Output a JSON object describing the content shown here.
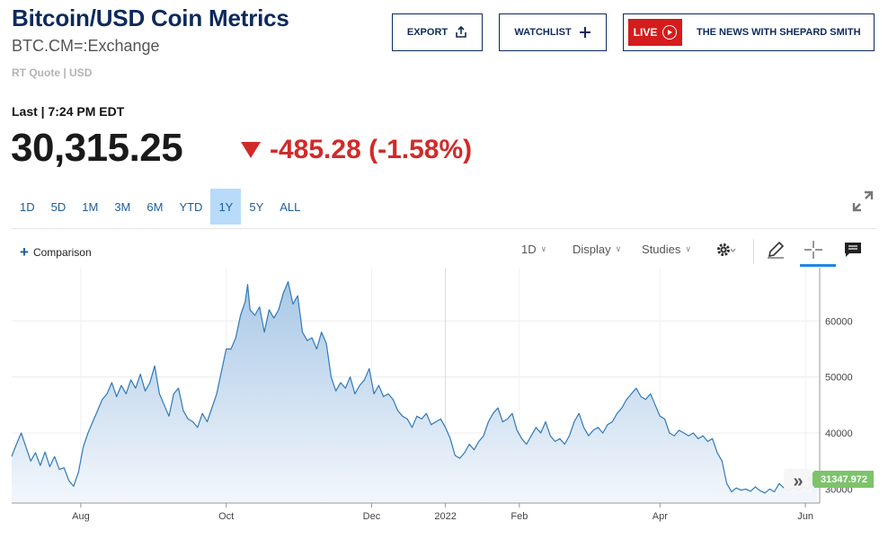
{
  "header": {
    "title": "Bitcoin/USD Coin Metrics",
    "symbol": "BTC.CM=:Exchange",
    "quote_meta": "RT Quote | USD"
  },
  "actions": {
    "export_label": "EXPORT",
    "watchlist_label": "WATCHLIST",
    "live_label": "LIVE",
    "live_show": "THE NEWS WITH SHEPARD SMITH"
  },
  "quote": {
    "last_label": "Last | 7:24 PM EDT",
    "price": "30,315.25",
    "change": "-485.28 (-1.58%)"
  },
  "ranges": [
    "1D",
    "5D",
    "1M",
    "3M",
    "6M",
    "YTD",
    "1Y",
    "5Y",
    "ALL"
  ],
  "active_range": "1Y",
  "toolbar": {
    "comparison_label": "Comparison",
    "interval_label": "1D",
    "display_label": "Display",
    "studies_label": "Studies"
  },
  "colors": {
    "line": "#2f7ab8",
    "area_top": "#a9c8e6",
    "area_bottom": "#f3f7fc",
    "down": "#d12a2a",
    "last_tag": "#7cc36a"
  },
  "chart_data": {
    "type": "area",
    "title": "Bitcoin/USD Coin Metrics",
    "x_ticks": [
      {
        "label": "Aug",
        "day": 29
      },
      {
        "label": "Oct",
        "day": 90
      },
      {
        "label": "Dec",
        "day": 151
      },
      {
        "label": "2022",
        "day": 182
      },
      {
        "label": "Feb",
        "day": 213
      },
      {
        "label": "Apr",
        "day": 272
      },
      {
        "label": "Jun",
        "day": 333
      }
    ],
    "x_domain_days": [
      0,
      339
    ],
    "y_ticks": [
      30000,
      40000,
      50000,
      60000
    ],
    "ylim": [
      27500,
      69500
    ],
    "last_value": "31347.972",
    "points": [
      [
        0,
        35800
      ],
      [
        2,
        38000
      ],
      [
        4,
        40000
      ],
      [
        6,
        37500
      ],
      [
        8,
        35000
      ],
      [
        10,
        36500
      ],
      [
        12,
        34200
      ],
      [
        14,
        36600
      ],
      [
        16,
        34000
      ],
      [
        18,
        35800
      ],
      [
        20,
        33500
      ],
      [
        22,
        33800
      ],
      [
        24,
        31500
      ],
      [
        26,
        30500
      ],
      [
        28,
        33000
      ],
      [
        30,
        37500
      ],
      [
        32,
        40000
      ],
      [
        34,
        42000
      ],
      [
        36,
        44000
      ],
      [
        38,
        46000
      ],
      [
        40,
        47000
      ],
      [
        42,
        49000
      ],
      [
        44,
        46500
      ],
      [
        46,
        48500
      ],
      [
        48,
        47000
      ],
      [
        50,
        49500
      ],
      [
        52,
        48000
      ],
      [
        54,
        50500
      ],
      [
        56,
        47500
      ],
      [
        58,
        49000
      ],
      [
        60,
        52000
      ],
      [
        62,
        47000
      ],
      [
        64,
        45000
      ],
      [
        66,
        43000
      ],
      [
        68,
        47000
      ],
      [
        70,
        48000
      ],
      [
        72,
        44000
      ],
      [
        74,
        42500
      ],
      [
        76,
        42000
      ],
      [
        78,
        41000
      ],
      [
        80,
        43500
      ],
      [
        82,
        42000
      ],
      [
        84,
        44500
      ],
      [
        86,
        47000
      ],
      [
        88,
        51000
      ],
      [
        90,
        55000
      ],
      [
        92,
        55000
      ],
      [
        94,
        57000
      ],
      [
        96,
        61000
      ],
      [
        98,
        63500
      ],
      [
        99,
        66500
      ],
      [
        100,
        62000
      ],
      [
        102,
        61000
      ],
      [
        104,
        62500
      ],
      [
        106,
        58000
      ],
      [
        108,
        62000
      ],
      [
        110,
        60500
      ],
      [
        112,
        62000
      ],
      [
        114,
        65000
      ],
      [
        116,
        67000
      ],
      [
        118,
        63000
      ],
      [
        120,
        64500
      ],
      [
        122,
        58000
      ],
      [
        124,
        56500
      ],
      [
        126,
        57000
      ],
      [
        128,
        55000
      ],
      [
        130,
        58000
      ],
      [
        132,
        56000
      ],
      [
        134,
        50000
      ],
      [
        136,
        47500
      ],
      [
        138,
        49000
      ],
      [
        140,
        48000
      ],
      [
        142,
        50000
      ],
      [
        144,
        47000
      ],
      [
        146,
        48500
      ],
      [
        148,
        49500
      ],
      [
        150,
        51500
      ],
      [
        152,
        47000
      ],
      [
        154,
        48500
      ],
      [
        156,
        46500
      ],
      [
        158,
        47000
      ],
      [
        160,
        46000
      ],
      [
        162,
        44000
      ],
      [
        164,
        43000
      ],
      [
        166,
        42500
      ],
      [
        168,
        41000
      ],
      [
        170,
        43000
      ],
      [
        172,
        42500
      ],
      [
        174,
        43500
      ],
      [
        176,
        41500
      ],
      [
        178,
        42000
      ],
      [
        180,
        42500
      ],
      [
        182,
        41000
      ],
      [
        184,
        39000
      ],
      [
        186,
        36000
      ],
      [
        188,
        35500
      ],
      [
        190,
        36500
      ],
      [
        192,
        38000
      ],
      [
        194,
        37000
      ],
      [
        196,
        38500
      ],
      [
        198,
        39500
      ],
      [
        200,
        42000
      ],
      [
        202,
        43500
      ],
      [
        204,
        44500
      ],
      [
        206,
        42000
      ],
      [
        208,
        42500
      ],
      [
        210,
        43500
      ],
      [
        212,
        40500
      ],
      [
        214,
        39000
      ],
      [
        216,
        38000
      ],
      [
        218,
        39500
      ],
      [
        220,
        41000
      ],
      [
        222,
        40000
      ],
      [
        224,
        42000
      ],
      [
        226,
        39500
      ],
      [
        228,
        38500
      ],
      [
        230,
        39000
      ],
      [
        232,
        38000
      ],
      [
        234,
        39500
      ],
      [
        236,
        42000
      ],
      [
        238,
        43500
      ],
      [
        240,
        41000
      ],
      [
        242,
        39500
      ],
      [
        244,
        40500
      ],
      [
        246,
        41000
      ],
      [
        248,
        40000
      ],
      [
        250,
        41500
      ],
      [
        252,
        42000
      ],
      [
        254,
        43500
      ],
      [
        256,
        44500
      ],
      [
        258,
        46000
      ],
      [
        260,
        47000
      ],
      [
        262,
        48000
      ],
      [
        264,
        46500
      ],
      [
        266,
        46000
      ],
      [
        268,
        47000
      ],
      [
        270,
        45000
      ],
      [
        272,
        43000
      ],
      [
        274,
        42500
      ],
      [
        276,
        40000
      ],
      [
        278,
        39500
      ],
      [
        280,
        40500
      ],
      [
        282,
        40000
      ],
      [
        284,
        39500
      ],
      [
        286,
        40000
      ],
      [
        288,
        39000
      ],
      [
        290,
        39500
      ],
      [
        292,
        38500
      ],
      [
        294,
        39000
      ],
      [
        296,
        36500
      ],
      [
        298,
        35000
      ],
      [
        300,
        31000
      ],
      [
        302,
        29500
      ],
      [
        304,
        30200
      ],
      [
        306,
        29800
      ],
      [
        308,
        30000
      ],
      [
        310,
        29600
      ],
      [
        312,
        30400
      ],
      [
        314,
        29700
      ],
      [
        316,
        29300
      ],
      [
        318,
        30000
      ],
      [
        320,
        29500
      ],
      [
        322,
        31000
      ],
      [
        324,
        30200
      ],
      [
        326,
        29700
      ],
      [
        328,
        30300
      ],
      [
        330,
        29800
      ],
      [
        332,
        30500
      ],
      [
        334,
        30000
      ],
      [
        336,
        30800
      ],
      [
        338,
        31348
      ]
    ]
  }
}
